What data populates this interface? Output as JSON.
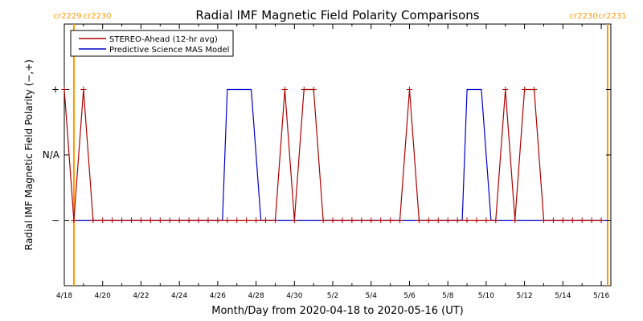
{
  "chart_data": {
    "type": "line",
    "title": "Radial IMF Magnetic Field Polarity Comparisons",
    "xlabel": "Month/Day from 2020-04-18 to 2020-05-16 (UT)",
    "ylabel": "Radial IMF Magnetic Field Polarity (−,+)",
    "xlim": [
      "2020-04-18",
      "2020-05-16 12:00"
    ],
    "ylim": [
      -2,
      2
    ],
    "x_tick_labels": [
      "4/18",
      "4/20",
      "4/22",
      "4/24",
      "4/26",
      "4/28",
      "4/30",
      "5/2",
      "5/4",
      "5/6",
      "5/8",
      "5/10",
      "5/12",
      "5/14",
      "5/16"
    ],
    "y_ticks": [
      {
        "value": 1,
        "label": "+"
      },
      {
        "value": 0,
        "label": "N/A"
      },
      {
        "value": -1,
        "label": "−"
      }
    ],
    "grid": false,
    "legend_position": "top-left",
    "carrington_markers": [
      {
        "x": "2020-04-18 12:00",
        "left_label": "cr2229",
        "right_label": "cr2230",
        "color": "#ff9900"
      },
      {
        "x": "2020-05-16 08:00",
        "left_label": "cr2230",
        "right_label": "cr2231",
        "color": "#ff9900"
      }
    ],
    "series": [
      {
        "name": "STEREO-Ahead (12-hr avg)",
        "color": "#b00000",
        "style": "line-plus-markers",
        "x": [
          "2020-04-18 00:00",
          "2020-04-18 12:00",
          "2020-04-19 00:00",
          "2020-04-19 12:00",
          "2020-04-20 00:00",
          "2020-04-20 12:00",
          "2020-04-21 00:00",
          "2020-04-21 12:00",
          "2020-04-22 00:00",
          "2020-04-22 12:00",
          "2020-04-23 00:00",
          "2020-04-23 12:00",
          "2020-04-24 00:00",
          "2020-04-24 12:00",
          "2020-04-25 00:00",
          "2020-04-25 12:00",
          "2020-04-26 00:00",
          "2020-04-26 12:00",
          "2020-04-27 00:00",
          "2020-04-27 12:00",
          "2020-04-28 00:00",
          "2020-04-28 12:00",
          "2020-04-29 00:00",
          "2020-04-29 12:00",
          "2020-04-30 00:00",
          "2020-04-30 12:00",
          "2020-05-01 00:00",
          "2020-05-01 12:00",
          "2020-05-02 00:00",
          "2020-05-02 12:00",
          "2020-05-03 00:00",
          "2020-05-03 12:00",
          "2020-05-04 00:00",
          "2020-05-04 12:00",
          "2020-05-05 00:00",
          "2020-05-05 12:00",
          "2020-05-06 00:00",
          "2020-05-06 12:00",
          "2020-05-07 00:00",
          "2020-05-07 12:00",
          "2020-05-08 00:00",
          "2020-05-08 12:00",
          "2020-05-09 00:00",
          "2020-05-09 12:00",
          "2020-05-10 00:00",
          "2020-05-10 12:00",
          "2020-05-11 00:00",
          "2020-05-11 12:00",
          "2020-05-12 00:00",
          "2020-05-12 12:00",
          "2020-05-13 00:00",
          "2020-05-13 12:00",
          "2020-05-14 00:00",
          "2020-05-14 12:00",
          "2020-05-15 00:00",
          "2020-05-15 12:00",
          "2020-05-16 00:00"
        ],
        "y": [
          1,
          -1,
          1,
          -1,
          -1,
          -1,
          -1,
          -1,
          -1,
          -1,
          -1,
          -1,
          -1,
          -1,
          -1,
          -1,
          -1,
          -1,
          -1,
          -1,
          -1,
          -1,
          -1,
          1,
          -1,
          1,
          1,
          -1,
          -1,
          -1,
          -1,
          -1,
          -1,
          -1,
          -1,
          -1,
          1,
          -1,
          -1,
          -1,
          -1,
          -1,
          -1,
          -1,
          -1,
          -1,
          1,
          -1,
          1,
          1,
          -1,
          -1,
          -1,
          -1,
          -1,
          -1,
          -1
        ]
      },
      {
        "name": "Predictive Science MAS Model",
        "color": "#0000cc",
        "style": "line",
        "x": [
          "2020-04-18 12:00",
          "2020-04-26 06:00",
          "2020-04-26 12:00",
          "2020-04-27 18:00",
          "2020-04-28 06:00",
          "2020-05-08 18:00",
          "2020-05-09 00:00",
          "2020-05-09 18:00",
          "2020-05-10 06:00",
          "2020-05-16 08:00"
        ],
        "y": [
          -1,
          -1,
          1,
          1,
          -1,
          -1,
          1,
          1,
          -1,
          -1
        ]
      }
    ]
  }
}
